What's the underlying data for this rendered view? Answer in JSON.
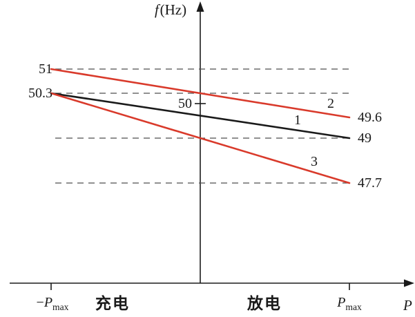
{
  "chart_data": {
    "type": "line",
    "title": "",
    "ylabel": "f (Hz)",
    "xlabel": "P",
    "x_range": [
      -1,
      1
    ],
    "ylim": [
      47,
      51.5
    ],
    "grid": "dashed horizontal reference lines at key frequencies",
    "legend_position": "inline numeric labels on lines",
    "y_tick": {
      "value": 50,
      "label": "50"
    },
    "x_ticks": [
      -1,
      1
    ],
    "dashed_levels": [
      51,
      50.3,
      49,
      47.7
    ],
    "series": [
      {
        "name": "2",
        "label": "2",
        "color": "#d93a2b",
        "points": [
          [
            -1,
            51.0
          ],
          [
            1,
            49.6
          ]
        ]
      },
      {
        "name": "1",
        "label": "1",
        "color": "#1a1a1a",
        "points": [
          [
            -1,
            50.3
          ],
          [
            1,
            49.0
          ]
        ]
      },
      {
        "name": "3",
        "label": "3",
        "color": "#d93a2b",
        "points": [
          [
            -1,
            50.3
          ],
          [
            1,
            47.7
          ]
        ]
      }
    ],
    "left_axis_annotations": [
      {
        "label": "51"
      },
      {
        "label": "50.3"
      }
    ],
    "right_axis_annotations": [
      {
        "label": "49.6"
      },
      {
        "label": "49"
      },
      {
        "label": "47.7"
      }
    ],
    "y_axis_title": {
      "italic": "f",
      "unit": "(Hz)"
    },
    "x_axis_title": "P",
    "x_axis_annotations": {
      "neg_pmax": {
        "sign": "−",
        "base": "P",
        "sub": "max"
      },
      "pmax": {
        "base": "P",
        "sub": "max"
      },
      "charge_label": "充电",
      "discharge_label": "放电"
    }
  },
  "colors": {
    "line_red": "#d93a2b",
    "line_black": "#1a1a1a",
    "dash_gray": "#4d4d4d"
  }
}
